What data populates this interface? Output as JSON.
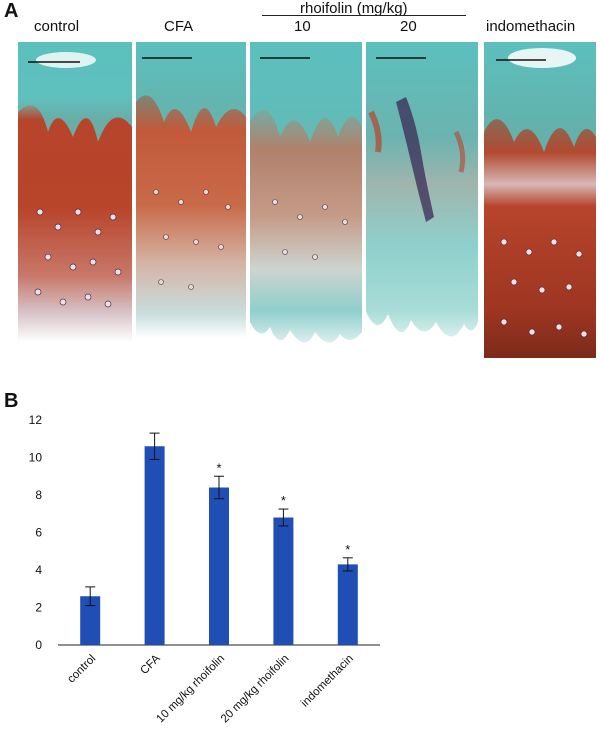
{
  "panel_a": {
    "letter": "A",
    "group_label": "rhoifolin (mg/kg)",
    "labels": [
      "control",
      "CFA",
      "10",
      "20",
      "indomethacin"
    ]
  },
  "panel_b": {
    "letter": "B"
  },
  "colors": {
    "bar": "#1f4fb5",
    "stain_red": "#b6452b",
    "stain_teal": "#5cc0bd"
  },
  "chart_data": {
    "type": "bar",
    "categories": [
      "control",
      "CFA",
      "10 mg/kg rhoifolin",
      "20 mg/kg rhoifolin",
      "indomethacin"
    ],
    "values": [
      2.6,
      10.6,
      8.4,
      6.8,
      4.3
    ],
    "errors": [
      0.5,
      0.7,
      0.6,
      0.45,
      0.35
    ],
    "significance": [
      "",
      "",
      "*",
      "*",
      "*"
    ],
    "ylim": [
      0,
      12
    ],
    "yticks": [
      0,
      2,
      4,
      6,
      8,
      10,
      12
    ],
    "grid": false,
    "title": "",
    "xlabel": "",
    "ylabel": ""
  }
}
